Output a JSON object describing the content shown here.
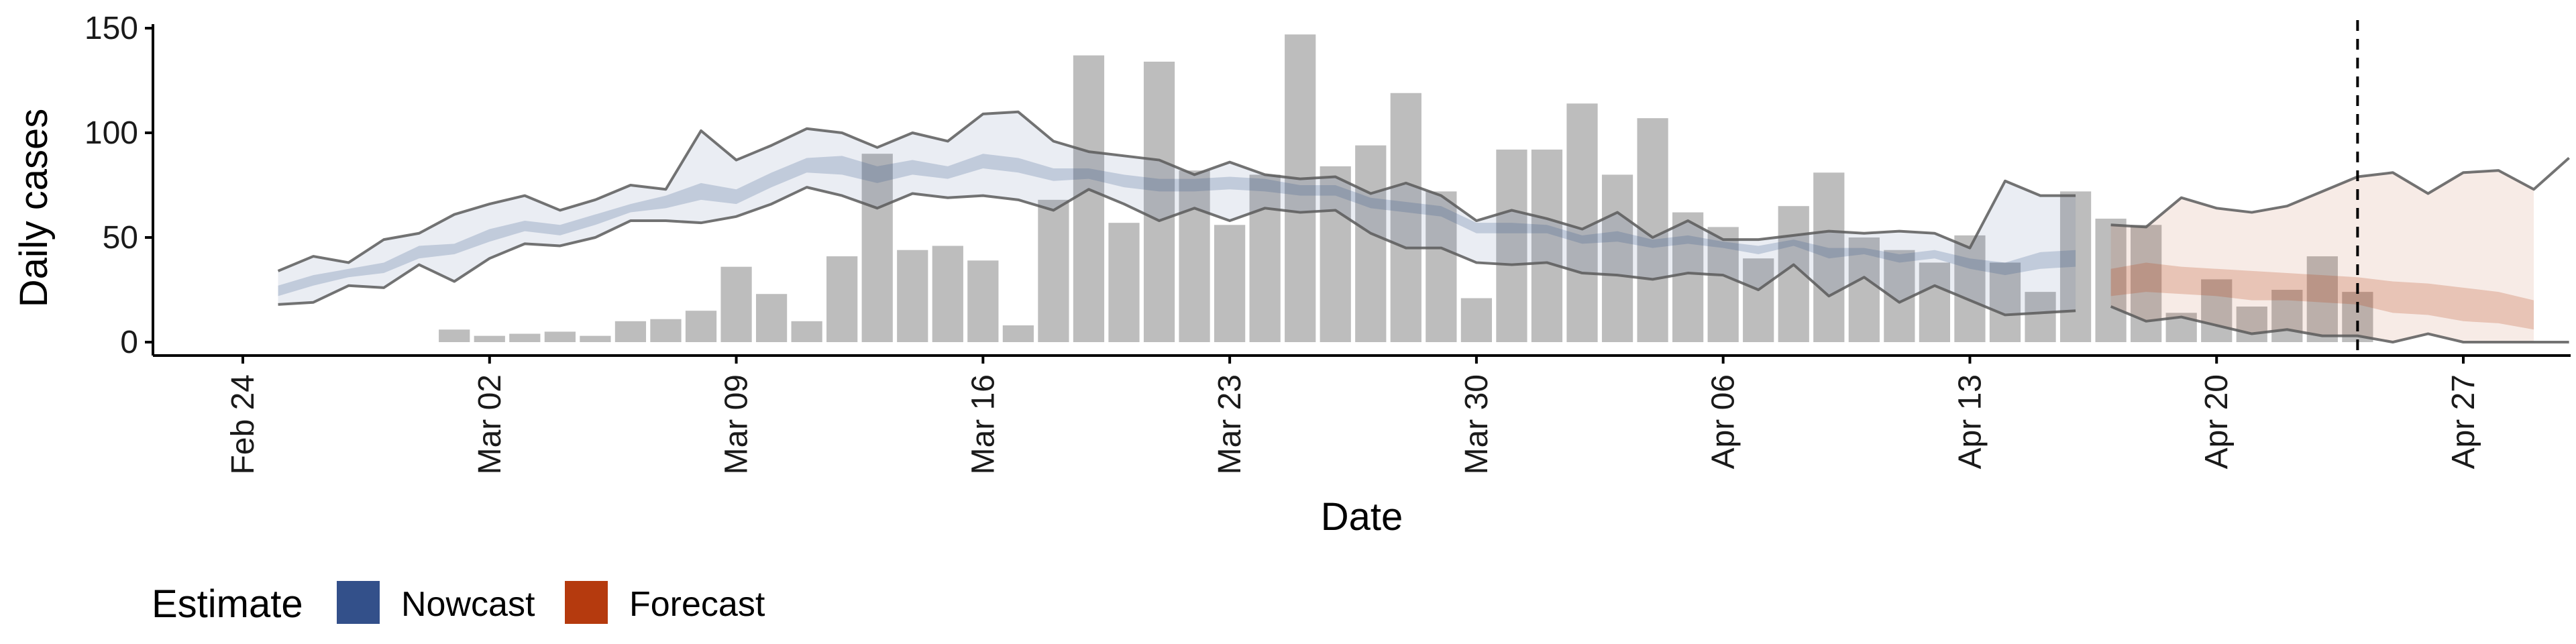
{
  "chart_data": {
    "type": "bar",
    "xlabel": "Date",
    "ylabel": "Daily cases",
    "ylim": [
      0,
      155
    ],
    "xlim": [
      "2020-02-24",
      "2020-05-01"
    ],
    "y_ticks": [
      0,
      50,
      100,
      150
    ],
    "x_ticks": [
      {
        "date": "2020-02-24",
        "label": "Feb 24"
      },
      {
        "date": "2020-03-02",
        "label": "Mar 02"
      },
      {
        "date": "2020-03-09",
        "label": "Mar 09"
      },
      {
        "date": "2020-03-16",
        "label": "Mar 16"
      },
      {
        "date": "2020-03-23",
        "label": "Mar 23"
      },
      {
        "date": "2020-03-30",
        "label": "Mar 30"
      },
      {
        "date": "2020-04-06",
        "label": "Apr 06"
      },
      {
        "date": "2020-04-13",
        "label": "Apr 13"
      },
      {
        "date": "2020-04-20",
        "label": "Apr 20"
      },
      {
        "date": "2020-04-27",
        "label": "Apr 27"
      }
    ],
    "grid": false,
    "legend_position": "bottom-left",
    "estimate_date": "2020-04-24",
    "colors": {
      "bars": "#bdbdbd",
      "nowcast": "#33508a",
      "forecast": "#b53a0e",
      "interval_line": "#5a5a5a"
    },
    "bars": {
      "dates": [
        "2020-03-01",
        "2020-03-02",
        "2020-03-03",
        "2020-03-04",
        "2020-03-05",
        "2020-03-06",
        "2020-03-07",
        "2020-03-08",
        "2020-03-09",
        "2020-03-10",
        "2020-03-11",
        "2020-03-12",
        "2020-03-13",
        "2020-03-14",
        "2020-03-15",
        "2020-03-16",
        "2020-03-17",
        "2020-03-18",
        "2020-03-19",
        "2020-03-20",
        "2020-03-21",
        "2020-03-22",
        "2020-03-23",
        "2020-03-24",
        "2020-03-25",
        "2020-03-26",
        "2020-03-27",
        "2020-03-28",
        "2020-03-29",
        "2020-03-30",
        "2020-03-31",
        "2020-04-01",
        "2020-04-02",
        "2020-04-03",
        "2020-04-04",
        "2020-04-05",
        "2020-04-06",
        "2020-04-07",
        "2020-04-08",
        "2020-04-09",
        "2020-04-10",
        "2020-04-11",
        "2020-04-12",
        "2020-04-13",
        "2020-04-14",
        "2020-04-15",
        "2020-04-16",
        "2020-04-17",
        "2020-04-18",
        "2020-04-19",
        "2020-04-20",
        "2020-04-21",
        "2020-04-22",
        "2020-04-23",
        "2020-04-24"
      ],
      "values": [
        6,
        3,
        4,
        5,
        3,
        10,
        11,
        15,
        36,
        23,
        10,
        41,
        90,
        44,
        46,
        39,
        8,
        68,
        137,
        57,
        134,
        82,
        56,
        80,
        147,
        84,
        94,
        119,
        72,
        21,
        92,
        92,
        114,
        80,
        107,
        62,
        55,
        40,
        65,
        81,
        50,
        44,
        38,
        51,
        38,
        24,
        72,
        59,
        56,
        14,
        30,
        17,
        25,
        41,
        24
      ]
    },
    "series": [
      {
        "name": "Nowcast",
        "role": "nowcast",
        "dates": [
          "2020-02-25",
          "2020-02-26",
          "2020-02-27",
          "2020-02-28",
          "2020-02-29",
          "2020-03-01",
          "2020-03-02",
          "2020-03-03",
          "2020-03-04",
          "2020-03-05",
          "2020-03-06",
          "2020-03-07",
          "2020-03-08",
          "2020-03-09",
          "2020-03-10",
          "2020-03-11",
          "2020-03-12",
          "2020-03-13",
          "2020-03-14",
          "2020-03-15",
          "2020-03-16",
          "2020-03-17",
          "2020-03-18",
          "2020-03-19",
          "2020-03-20",
          "2020-03-21",
          "2020-03-22",
          "2020-03-23",
          "2020-03-24",
          "2020-03-25",
          "2020-03-26",
          "2020-03-27",
          "2020-03-28",
          "2020-03-29",
          "2020-03-30",
          "2020-03-31",
          "2020-04-01",
          "2020-04-02",
          "2020-04-03",
          "2020-04-04",
          "2020-04-05",
          "2020-04-06",
          "2020-04-07",
          "2020-04-08",
          "2020-04-09",
          "2020-04-10",
          "2020-04-11",
          "2020-04-12",
          "2020-04-13",
          "2020-04-14",
          "2020-04-15",
          "2020-04-16"
        ],
        "lower90": [
          18,
          19,
          27,
          26,
          37,
          29,
          40,
          47,
          46,
          50,
          58,
          58,
          57,
          60,
          66,
          74,
          70,
          64,
          71,
          69,
          70,
          68,
          63,
          73,
          66,
          58,
          64,
          58,
          64,
          62,
          63,
          52,
          45,
          45,
          38,
          37,
          38,
          33,
          32,
          30,
          33,
          32,
          25,
          37,
          22,
          31,
          19,
          27,
          20,
          13,
          14,
          15
        ],
        "upper90": [
          34,
          41,
          38,
          49,
          52,
          61,
          66,
          70,
          63,
          68,
          75,
          73,
          101,
          87,
          94,
          102,
          100,
          93,
          100,
          96,
          109,
          110,
          96,
          91,
          89,
          87,
          80,
          86,
          80,
          78,
          79,
          71,
          76,
          70,
          58,
          63,
          59,
          54,
          62,
          50,
          58,
          49,
          49,
          51,
          53,
          52,
          53,
          52,
          45,
          77,
          70,
          70
        ],
        "lower50": [
          22,
          27,
          31,
          33,
          40,
          42,
          48,
          53,
          51,
          56,
          62,
          64,
          68,
          66,
          74,
          81,
          80,
          76,
          80,
          78,
          83,
          81,
          77,
          78,
          74,
          72,
          72,
          73,
          72,
          70,
          70,
          64,
          62,
          60,
          52,
          52,
          52,
          47,
          48,
          45,
          47,
          45,
          42,
          46,
          40,
          42,
          38,
          40,
          35,
          32,
          35,
          36
        ],
        "upper50": [
          27,
          32,
          35,
          38,
          46,
          47,
          54,
          58,
          56,
          61,
          66,
          70,
          76,
          73,
          81,
          88,
          89,
          84,
          87,
          84,
          90,
          88,
          83,
          83,
          80,
          78,
          78,
          79,
          78,
          75,
          75,
          69,
          67,
          65,
          57,
          57,
          56,
          51,
          53,
          49,
          51,
          48,
          46,
          49,
          45,
          45,
          42,
          44,
          40,
          38,
          43,
          44
        ]
      },
      {
        "name": "Forecast",
        "role": "forecast",
        "dates": [
          "2020-04-17",
          "2020-04-18",
          "2020-04-19",
          "2020-04-20",
          "2020-04-21",
          "2020-04-22",
          "2020-04-23",
          "2020-04-24",
          "2020-04-25",
          "2020-04-26",
          "2020-04-27",
          "2020-04-28",
          "2020-04-29"
        ],
        "lower90": [
          17,
          10,
          12,
          8,
          4,
          6,
          3,
          3,
          0,
          4,
          0,
          0,
          0
        ],
        "upper90": [
          56,
          55,
          69,
          64,
          62,
          65,
          72,
          79,
          81,
          71,
          81,
          82,
          73
        ],
        "lower50": [
          22,
          24,
          23,
          22,
          20,
          20,
          19,
          18,
          14,
          13,
          10,
          9,
          6
        ],
        "upper50": [
          35,
          38,
          36,
          35,
          34,
          33,
          32,
          31,
          29,
          28,
          26,
          24,
          20
        ]
      }
    ],
    "interval_lines": [
      {
        "dates": [
          "2020-04-17",
          "2020-04-18",
          "2020-04-19",
          "2020-04-20",
          "2020-04-21",
          "2020-04-22",
          "2020-04-23",
          "2020-04-24",
          "2020-04-25",
          "2020-04-26",
          "2020-04-27",
          "2020-04-28",
          "2020-04-29",
          "2020-04-30"
        ],
        "values": [
          56,
          55,
          69,
          64,
          62,
          65,
          72,
          79,
          81,
          71,
          81,
          82,
          73,
          88
        ]
      },
      {
        "dates": [
          "2020-04-17",
          "2020-04-18",
          "2020-04-19",
          "2020-04-20",
          "2020-04-21",
          "2020-04-22",
          "2020-04-23",
          "2020-04-24",
          "2020-04-25",
          "2020-04-26",
          "2020-04-27",
          "2020-04-28",
          "2020-04-29",
          "2020-04-30"
        ],
        "values": [
          17,
          10,
          12,
          8,
          4,
          6,
          3,
          3,
          0,
          4,
          0,
          0,
          0,
          0
        ]
      }
    ],
    "legend": {
      "title": "Estimate",
      "entries": [
        {
          "label": "Nowcast",
          "color": "#33508a"
        },
        {
          "label": "Forecast",
          "color": "#b53a0e"
        }
      ]
    }
  }
}
